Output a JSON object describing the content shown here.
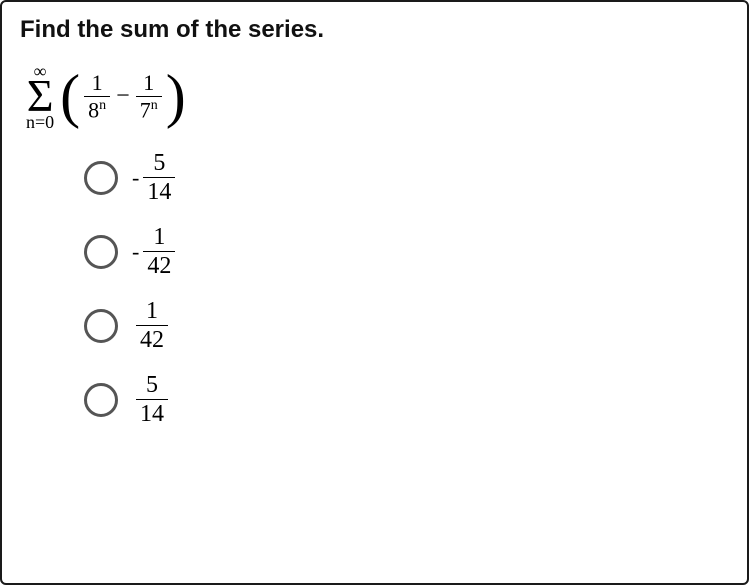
{
  "title": "Find the sum of the series.",
  "summation": {
    "upper": "∞",
    "sigma": "Σ",
    "lower": "n=0",
    "frac1": {
      "num": "1",
      "den_base": "8",
      "den_exp": "n"
    },
    "frac2": {
      "num": "1",
      "den_base": "7",
      "den_exp": "n"
    }
  },
  "options": [
    {
      "neg": "-",
      "num": "5",
      "den": "14"
    },
    {
      "neg": "-",
      "num": "1",
      "den": "42"
    },
    {
      "neg": "",
      "num": "1",
      "den": "42"
    },
    {
      "neg": "",
      "num": "5",
      "den": "14"
    }
  ]
}
